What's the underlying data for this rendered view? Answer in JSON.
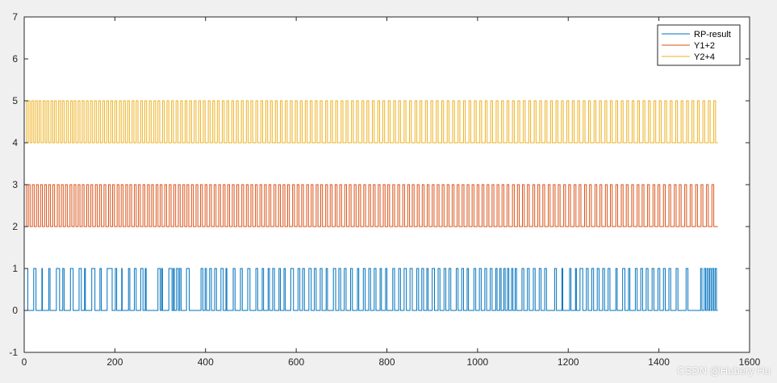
{
  "chart_data": {
    "type": "line",
    "title": "",
    "xlabel": "",
    "ylabel": "",
    "xlim": [
      0,
      1600
    ],
    "ylim": [
      -1,
      7
    ],
    "xticks": [
      0,
      200,
      400,
      600,
      800,
      1000,
      1200,
      1400,
      1600
    ],
    "yticks": [
      -1,
      0,
      1,
      2,
      3,
      4,
      5,
      6,
      7
    ],
    "grid": false,
    "legend_position": "top-right",
    "x_range": [
      1,
      1530
    ],
    "series": [
      {
        "name": "RP-result",
        "color": "#0072BD",
        "levels": [
          0,
          1
        ],
        "step_x": [
          1,
          8,
          21,
          26,
          39,
          40,
          54,
          57,
          71,
          78,
          85,
          88,
          102,
          108,
          121,
          126,
          133,
          135,
          149,
          156,
          167,
          170,
          183,
          194,
          201,
          204,
          215,
          216,
          230,
          233,
          243,
          247,
          257,
          262,
          267,
          269,
          295,
          300,
          303,
          305,
          319,
          326,
          329,
          331,
          336,
          340,
          343,
          346,
          358,
          364,
          390,
          394,
          399,
          402,
          409,
          413,
          420,
          424,
          434,
          439,
          445,
          447,
          461,
          465,
          477,
          481,
          493,
          498,
          511,
          515,
          525,
          528,
          538,
          541,
          548,
          552,
          562,
          565,
          573,
          576,
          588,
          594,
          604,
          608,
          614,
          618,
          628,
          633,
          640,
          644,
          653,
          657,
          666,
          669,
          682,
          687,
          694,
          698,
          706,
          710,
          720,
          724,
          735,
          738,
          748,
          752,
          760,
          764,
          772,
          776,
          785,
          788,
          797,
          800,
          813,
          817,
          826,
          830,
          838,
          843,
          851,
          856,
          866,
          870,
          877,
          881,
          888,
          891,
          900,
          905,
          913,
          917,
          926,
          930,
          937,
          941,
          953,
          957,
          965,
          969,
          977,
          980,
          992,
          996,
          1004,
          1008,
          1016,
          1020,
          1028,
          1032,
          1040,
          1043,
          1049,
          1052,
          1058,
          1061,
          1066,
          1069,
          1075,
          1078,
          1083,
          1086,
          1098,
          1102,
          1110,
          1114,
          1123,
          1127,
          1136,
          1140,
          1148,
          1152,
          1170,
          1174,
          1186,
          1188,
          1203,
          1206,
          1216,
          1218,
          1226,
          1232,
          1240,
          1244,
          1252,
          1256,
          1264,
          1268,
          1276,
          1280,
          1288,
          1292,
          1305,
          1308,
          1320,
          1325,
          1333,
          1336,
          1348,
          1352,
          1360,
          1364,
          1372,
          1376,
          1385,
          1389,
          1398,
          1402,
          1410,
          1414,
          1422,
          1426,
          1438,
          1442,
          1460,
          1464,
          1492,
          1495,
          1500,
          1503,
          1506,
          1509,
          1512,
          1515,
          1518,
          1521,
          1524,
          1527,
          1530
        ]
      },
      {
        "name": "Y1+2",
        "color": "#D95319",
        "levels": [
          2,
          3
        ],
        "step_x": [
          1,
          5,
          9,
          13,
          18,
          22,
          27,
          31,
          36,
          40,
          45,
          49,
          54,
          58,
          63,
          67,
          73,
          77,
          82,
          86,
          91,
          95,
          101,
          105,
          110,
          114,
          119,
          123,
          128,
          132,
          138,
          142,
          147,
          151,
          157,
          161,
          166,
          170,
          176,
          180,
          186,
          190,
          195,
          199,
          205,
          209,
          214,
          218,
          224,
          228,
          233,
          237,
          243,
          247,
          252,
          256,
          262,
          266,
          272,
          276,
          281,
          285,
          291,
          295,
          300,
          304,
          310,
          314,
          320,
          324,
          330,
          334,
          340,
          344,
          350,
          354,
          359,
          363,
          369,
          373,
          379,
          383,
          389,
          393,
          399,
          403,
          409,
          413,
          419,
          423,
          429,
          433,
          439,
          443,
          449,
          453,
          459,
          463,
          469,
          473,
          480,
          484,
          490,
          494,
          500,
          504,
          510,
          514,
          520,
          524,
          530,
          534,
          540,
          544,
          551,
          555,
          561,
          565,
          571,
          575,
          581,
          585,
          592,
          596,
          602,
          606,
          612,
          616,
          623,
          627,
          633,
          637,
          644,
          648,
          654,
          658,
          665,
          669,
          675,
          679,
          686,
          690,
          696,
          700,
          707,
          711,
          717,
          721,
          728,
          732,
          738,
          742,
          749,
          753,
          760,
          764,
          770,
          774,
          781,
          785,
          792,
          796,
          802,
          806,
          813,
          817,
          824,
          828,
          835,
          839,
          846,
          850,
          856,
          860,
          867,
          871,
          878,
          882,
          889,
          893,
          900,
          904,
          911,
          915,
          922,
          926,
          933,
          937,
          944,
          948,
          955,
          959,
          966,
          970,
          977,
          981,
          988,
          992,
          999,
          1003,
          1010,
          1014,
          1021,
          1025,
          1032,
          1036,
          1043,
          1047,
          1054,
          1058,
          1065,
          1069,
          1077,
          1081,
          1088,
          1092,
          1099,
          1103,
          1110,
          1114,
          1122,
          1126,
          1133,
          1137,
          1144,
          1148,
          1156,
          1160,
          1167,
          1171,
          1178,
          1182,
          1190,
          1194,
          1201,
          1205,
          1213,
          1217,
          1224,
          1228,
          1236,
          1240,
          1247,
          1251,
          1259,
          1263,
          1270,
          1274,
          1282,
          1286,
          1293,
          1297,
          1305,
          1309,
          1317,
          1321,
          1328,
          1332,
          1340,
          1344,
          1352,
          1356,
          1363,
          1367,
          1375,
          1379,
          1387,
          1391,
          1398,
          1402,
          1410,
          1414,
          1422,
          1426,
          1434,
          1438,
          1445,
          1449,
          1457,
          1461,
          1469,
          1473,
          1481,
          1485,
          1493,
          1497,
          1505,
          1509,
          1517,
          1521,
          1530
        ]
      },
      {
        "name": "Y2+4",
        "color": "#EDB120",
        "levels": [
          4,
          5
        ],
        "step_x": [
          1,
          5,
          9,
          13,
          17,
          21,
          25,
          29,
          33,
          37,
          42,
          46,
          50,
          54,
          59,
          63,
          67,
          71,
          76,
          80,
          84,
          88,
          93,
          97,
          102,
          106,
          110,
          114,
          119,
          123,
          128,
          132,
          137,
          141,
          146,
          150,
          155,
          159,
          164,
          168,
          173,
          177,
          182,
          186,
          191,
          195,
          200,
          204,
          210,
          214,
          219,
          223,
          228,
          232,
          238,
          242,
          247,
          251,
          257,
          261,
          266,
          270,
          276,
          280,
          286,
          290,
          295,
          299,
          305,
          309,
          315,
          319,
          325,
          329,
          335,
          339,
          345,
          349,
          355,
          359,
          365,
          369,
          375,
          379,
          385,
          389,
          395,
          399,
          406,
          410,
          416,
          420,
          426,
          430,
          437,
          441,
          447,
          451,
          458,
          462,
          468,
          472,
          479,
          483,
          490,
          494,
          500,
          504,
          511,
          515,
          522,
          526,
          533,
          537,
          543,
          547,
          554,
          558,
          565,
          569,
          576,
          580,
          587,
          591,
          598,
          602,
          609,
          613,
          620,
          624,
          631,
          635,
          642,
          646,
          653,
          657,
          665,
          669,
          676,
          680,
          687,
          691,
          699,
          703,
          710,
          714,
          722,
          726,
          733,
          737,
          745,
          749,
          756,
          760,
          768,
          772,
          780,
          784,
          791,
          795,
          803,
          807,
          815,
          819,
          826,
          830,
          838,
          842,
          850,
          854,
          862,
          866,
          873,
          877,
          885,
          889,
          897,
          901,
          909,
          913,
          921,
          925,
          933,
          937,
          945,
          949,
          957,
          961,
          969,
          973,
          981,
          985,
          993,
          997,
          1005,
          1009,
          1017,
          1021,
          1029,
          1033,
          1041,
          1045,
          1053,
          1057,
          1065,
          1069,
          1077,
          1081,
          1089,
          1093,
          1101,
          1105,
          1113,
          1117,
          1125,
          1129,
          1137,
          1141,
          1149,
          1153,
          1161,
          1165,
          1173,
          1177,
          1185,
          1189,
          1197,
          1201,
          1209,
          1213,
          1221,
          1225,
          1233,
          1237,
          1245,
          1249,
          1257,
          1261,
          1269,
          1273,
          1281,
          1285,
          1293,
          1297,
          1305,
          1309,
          1317,
          1321,
          1329,
          1333,
          1341,
          1345,
          1353,
          1357,
          1365,
          1369,
          1377,
          1381,
          1389,
          1393,
          1401,
          1405,
          1413,
          1417,
          1425,
          1429,
          1437,
          1441,
          1449,
          1453,
          1461,
          1465,
          1473,
          1477,
          1485,
          1489,
          1497,
          1501,
          1509,
          1513,
          1521,
          1525,
          1530
        ]
      }
    ]
  },
  "watermark": "CSDN @Hubery Hu"
}
